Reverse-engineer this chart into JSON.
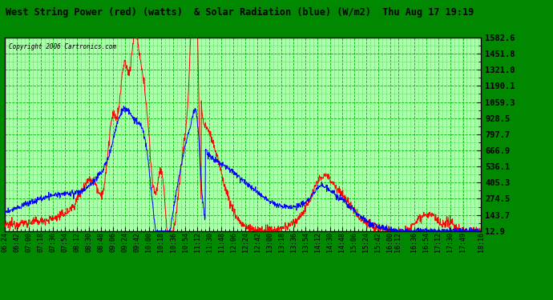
{
  "title": "West String Power (red) (watts)  & Solar Radiation (blue) (W/m2)  Thu Aug 17 19:19",
  "copyright": "Copyright 2006 Cartronics.com",
  "background_color": "#008800",
  "plot_bg_color": "#aaffaa",
  "y_min": 12.9,
  "y_max": 1582.6,
  "y_ticks": [
    12.9,
    143.7,
    274.5,
    405.3,
    536.1,
    666.9,
    797.7,
    928.5,
    1059.3,
    1190.1,
    1321.0,
    1451.8,
    1582.6
  ],
  "x_labels": [
    "06:24",
    "06:42",
    "07:00",
    "07:18",
    "07:36",
    "07:54",
    "08:12",
    "08:30",
    "08:48",
    "09:06",
    "09:24",
    "09:42",
    "10:00",
    "10:18",
    "10:36",
    "10:54",
    "11:12",
    "11:30",
    "11:48",
    "12:06",
    "12:24",
    "12:42",
    "13:00",
    "13:18",
    "13:36",
    "13:54",
    "14:12",
    "14:30",
    "14:48",
    "15:06",
    "15:24",
    "15:42",
    "16:00",
    "16:12",
    "16:36",
    "16:54",
    "17:12",
    "17:30",
    "17:49",
    "18:16"
  ],
  "red_color": "#ff0000",
  "blue_color": "#0000ff",
  "grid_color": "#00bb00"
}
